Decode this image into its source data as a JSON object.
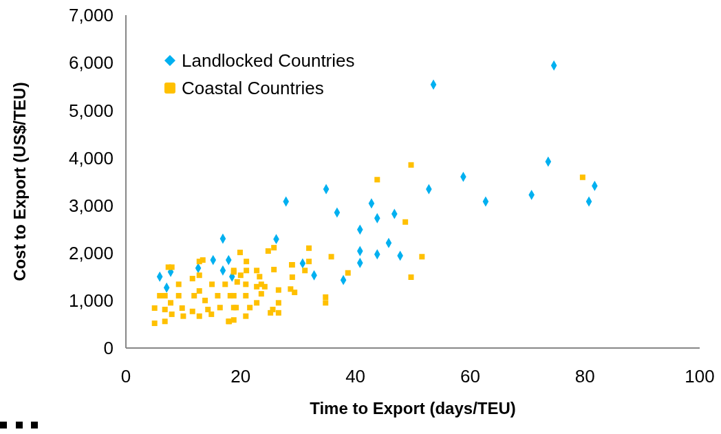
{
  "chart_data": {
    "type": "scatter",
    "xlabel": "Time to Export  (days/TEU)",
    "ylabel": "Cost to Export  (US$/TEU)",
    "xlim": [
      0,
      100
    ],
    "xticks": [
      0,
      20,
      40,
      60,
      80,
      100
    ],
    "ylim": [
      0,
      7000
    ],
    "yticks": [
      0,
      {
        "value": 1000,
        "label": "1,000"
      },
      {
        "value": 2000,
        "label": "2,000"
      },
      {
        "value": 3000,
        "label": "3,000"
      },
      {
        "value": 4000,
        "label": "4,000"
      },
      {
        "value": 5000,
        "label": "5,000"
      },
      {
        "value": 6000,
        "label": "6,000"
      },
      {
        "value": 7000,
        "label": "7,000"
      }
    ],
    "grid": false,
    "legend": "top left",
    "series": [
      {
        "name": "Landlocked Countries",
        "color": "#00b0f0",
        "marker": "diamond",
        "x": [
          53.6,
          74.6,
          27.9,
          34.9,
          36.8,
          42.8,
          43.8,
          46.8,
          40.8,
          40.8,
          45.8,
          43.8,
          47.8,
          40.8,
          32.8,
          37.9,
          26.2,
          30.8,
          52.8,
          58.8,
          62.7,
          70.7,
          73.6,
          80.7,
          81.7,
          16.9,
          15.2,
          17.9,
          16.9,
          5.9,
          7.8,
          7.1,
          12.6,
          18.5
        ],
        "values": [
          5540,
          5940,
          3080,
          3340,
          2850,
          3040,
          2730,
          2820,
          2490,
          2040,
          2210,
          1970,
          1940,
          1790,
          1530,
          1430,
          2290,
          1780,
          3340,
          3600,
          3080,
          3220,
          3920,
          3080,
          3410,
          2300,
          1850,
          1850,
          1630,
          1500,
          1600,
          1270,
          1680,
          1500
        ]
      },
      {
        "name": "Coastal Countries",
        "color": "#ffc000",
        "marker": "square",
        "x": [
          49.7,
          43.8,
          79.6,
          48.7,
          31.9,
          35.8,
          51.6,
          31.9,
          38.7,
          49.7,
          28.9,
          25.8,
          24.8,
          19.9,
          21,
          21,
          18.8,
          22.8,
          25.8,
          29,
          29,
          31.2,
          29.4,
          34.8,
          34.8,
          26.6,
          26.6,
          23.3,
          23.6,
          23.6,
          22.8,
          25.2,
          26.6,
          20.9,
          18.8,
          18.8,
          20.9,
          20,
          20.9,
          22.8,
          18.8,
          21.6,
          25.6,
          18,
          24.2,
          28.7,
          5,
          5,
          5.9,
          7.4,
          8,
          13.4,
          12.8,
          6.8,
          6.8,
          6.8,
          7.8,
          8,
          9.2,
          9.2,
          9.8,
          10,
          11.6,
          11.9,
          11.6,
          12.8,
          12.8,
          12.8,
          13.8,
          14.3,
          15,
          14.9,
          16,
          16.4,
          17.3,
          17.9,
          18.2,
          19.2,
          18.8,
          19.4
        ],
        "values": [
          3850,
          3540,
          3590,
          2650,
          2100,
          1920,
          1920,
          1820,
          1580,
          1490,
          1750,
          2110,
          2040,
          2010,
          1820,
          1630,
          1630,
          1630,
          1650,
          1750,
          1490,
          1630,
          1170,
          1070,
          950,
          1220,
          950,
          1500,
          1340,
          1140,
          950,
          740,
          740,
          670,
          590,
          1100,
          1100,
          1530,
          1340,
          1290,
          850,
          850,
          810,
          560,
          1290,
          1240,
          520,
          840,
          1100,
          1700,
          1700,
          1850,
          1820,
          560,
          810,
          1100,
          950,
          710,
          1100,
          1340,
          840,
          670,
          1460,
          1100,
          770,
          670,
          1530,
          1200,
          1000,
          810,
          1340,
          710,
          1100,
          850,
          1340,
          560,
          1100,
          850,
          1600,
          1390
        ]
      }
    ]
  }
}
